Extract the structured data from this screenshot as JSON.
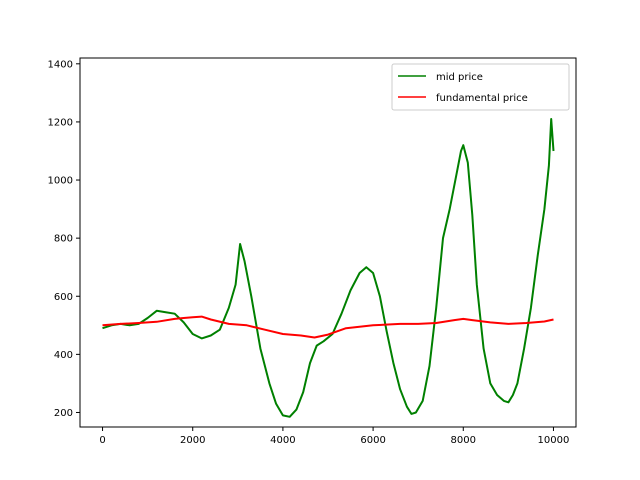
{
  "chart_data": {
    "type": "line",
    "title": "",
    "xlabel": "",
    "ylabel": "",
    "xlim": [
      -500,
      10500
    ],
    "ylim": [
      150,
      1420
    ],
    "x_ticks": [
      0,
      2000,
      4000,
      6000,
      8000,
      10000
    ],
    "y_ticks": [
      200,
      400,
      600,
      800,
      1000,
      1200,
      1400
    ],
    "grid": false,
    "legend_position": "top-right",
    "series": [
      {
        "name": "mid price",
        "color": "#008000",
        "x": [
          0,
          200,
          400,
          600,
          800,
          1000,
          1200,
          1400,
          1600,
          1800,
          2000,
          2200,
          2400,
          2600,
          2800,
          2950,
          3050,
          3150,
          3300,
          3500,
          3700,
          3850,
          4000,
          4150,
          4300,
          4450,
          4600,
          4750,
          4900,
          5100,
          5300,
          5500,
          5700,
          5850,
          6000,
          6150,
          6300,
          6450,
          6600,
          6750,
          6850,
          6950,
          7100,
          7250,
          7400,
          7550,
          7700,
          7850,
          7950,
          8000,
          8100,
          8200,
          8300,
          8450,
          8600,
          8750,
          8900,
          9000,
          9100,
          9200,
          9350,
          9500,
          9650,
          9800,
          9900,
          9950,
          10000
        ],
        "y": [
          490,
          500,
          505,
          500,
          505,
          525,
          550,
          545,
          540,
          510,
          470,
          455,
          465,
          485,
          560,
          640,
          780,
          720,
          600,
          420,
          300,
          230,
          190,
          185,
          210,
          270,
          370,
          430,
          445,
          470,
          540,
          620,
          680,
          700,
          680,
          600,
          480,
          370,
          280,
          220,
          195,
          200,
          240,
          360,
          560,
          800,
          900,
          1020,
          1100,
          1120,
          1060,
          880,
          640,
          420,
          300,
          260,
          240,
          235,
          260,
          300,
          420,
          560,
          740,
          900,
          1050,
          1210,
          1100
        ]
      },
      {
        "name": "fundamental price",
        "color": "#ff0000",
        "x": [
          0,
          400,
          800,
          1200,
          1600,
          1800,
          2000,
          2200,
          2400,
          2800,
          3200,
          3600,
          4000,
          4400,
          4700,
          5000,
          5400,
          6000,
          6600,
          7000,
          7400,
          7800,
          8000,
          8200,
          8600,
          9000,
          9400,
          9800,
          10000
        ],
        "y": [
          500,
          505,
          508,
          512,
          522,
          525,
          528,
          530,
          520,
          505,
          500,
          485,
          470,
          465,
          458,
          468,
          490,
          500,
          505,
          505,
          508,
          518,
          522,
          518,
          510,
          505,
          508,
          513,
          520
        ]
      }
    ]
  }
}
